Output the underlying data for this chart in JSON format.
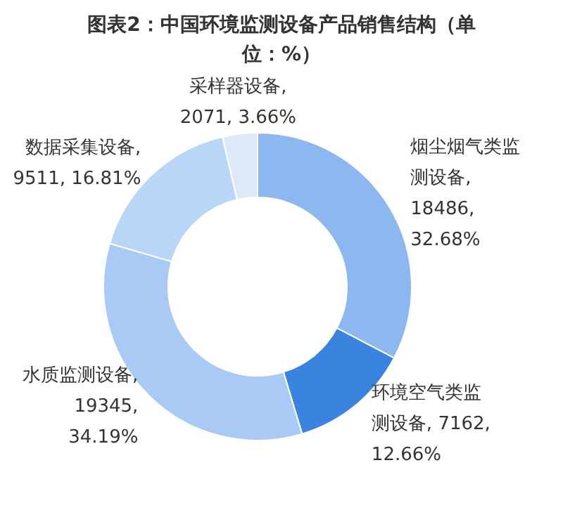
{
  "chart_data": {
    "type": "donut",
    "title": "图表2：中国环境监测设备产品销售结构（单位：%）",
    "categories": [
      "烟尘烟气类监测设备",
      "环境空气类监测设备",
      "水质监测设备",
      "数据采集设备",
      "采样器设备"
    ],
    "values": [
      18486,
      7162,
      19345,
      9511,
      2071
    ],
    "value_labels": [
      ", 18486, 32.68%",
      ", 7162, 12.66%",
      ", 19345, 34.19%",
      ", 9511, 16.81%",
      ", 2071, 3.66%"
    ],
    "colors": [
      "#8db8ef",
      "#3a84e0",
      "#a8caf4",
      "#bad6f7",
      "#dde9f8"
    ],
    "legend": false
  }
}
